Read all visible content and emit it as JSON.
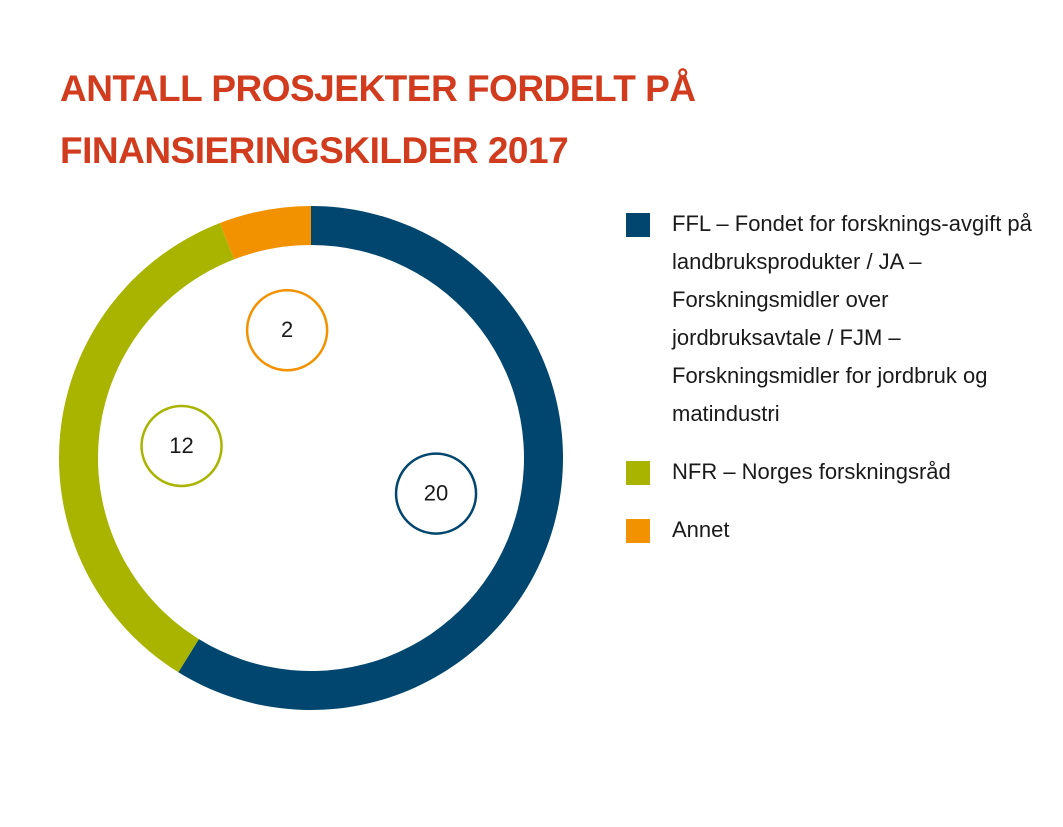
{
  "chart_data": {
    "type": "donut",
    "title": "ANTALL PROSJEKTER FORDELT PÅ FINANSIERINGSKILDER 2017",
    "categories": [
      "FFL – Fondet for forsknings-avgift på landbruksprodukter / JA – Forskningsmidler over jordbruksavtale / FJM – Forskningsmidler for jordbruk og matindustri",
      "NFR – Norges forskningsråd",
      "Annet"
    ],
    "values": [
      20,
      12,
      2
    ],
    "colors": [
      "#00466e",
      "#a9b400",
      "#f39200"
    ]
  }
}
